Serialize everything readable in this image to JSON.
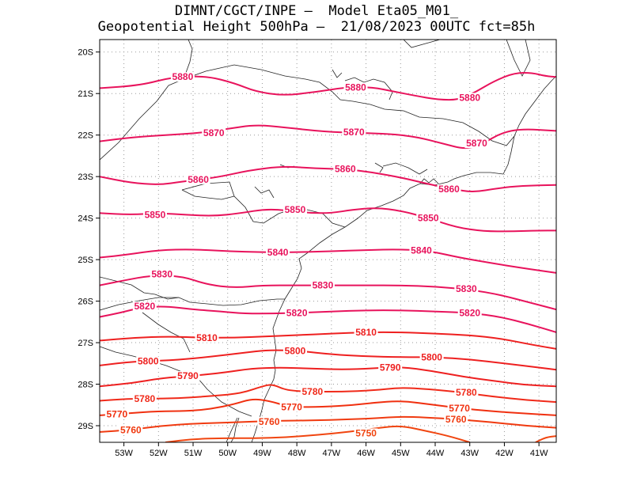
{
  "title_line1": "DIMNT/CGCT/INPE —  Model Eta05_M01_",
  "title_line2": "Geopotential Height 500hPa —  21/08/2023 00UTC fct=85h",
  "axes": {
    "lon_range": [
      -53.7,
      -40.5
    ],
    "lat_range": [
      -29.4,
      -19.7
    ],
    "x_ticks": [
      "53W",
      "52W",
      "51W",
      "50W",
      "49W",
      "48W",
      "47W",
      "46W",
      "45W",
      "44W",
      "43W",
      "42W",
      "41W"
    ],
    "x_tick_values": [
      -53,
      -52,
      -51,
      -50,
      -49,
      -48,
      -47,
      -46,
      -45,
      -44,
      -43,
      -42,
      -41
    ],
    "y_ticks": [
      "20S",
      "21S",
      "22S",
      "23S",
      "24S",
      "25S",
      "26S",
      "27S",
      "28S",
      "29S"
    ],
    "y_tick_values": [
      -20,
      -21,
      -22,
      -23,
      -24,
      -25,
      -26,
      -27,
      -28,
      -29
    ]
  },
  "contours": [
    {
      "level": "5880",
      "color": "#e8135c",
      "pts": [
        [
          -53.7,
          -20.87
        ],
        [
          -52.5,
          -20.8
        ],
        [
          -51.6,
          -20.6
        ],
        [
          -50.6,
          -20.58
        ],
        [
          -49.8,
          -20.75
        ],
        [
          -49.2,
          -20.95
        ],
        [
          -48.4,
          -21.05
        ],
        [
          -47.5,
          -20.97
        ],
        [
          -46.6,
          -20.85
        ],
        [
          -45.8,
          -20.85
        ],
        [
          -45.2,
          -20.95
        ],
        [
          -44.6,
          -21.05
        ],
        [
          -43.9,
          -21.15
        ],
        [
          -43.3,
          -21.15
        ],
        [
          -42.8,
          -20.95
        ],
        [
          -42.3,
          -20.7
        ],
        [
          -41.7,
          -20.5
        ],
        [
          -41.2,
          -20.5
        ],
        [
          -40.8,
          -20.58
        ],
        [
          -40.5,
          -20.6
        ]
      ],
      "labels": [
        [
          -51.3,
          -20.6
        ],
        [
          -46.3,
          -20.85
        ],
        [
          -43.0,
          -21.1
        ]
      ]
    },
    {
      "level": "5870",
      "color": "#e8135c",
      "pts": [
        [
          -53.7,
          -22.15
        ],
        [
          -52.7,
          -22.05
        ],
        [
          -51.8,
          -22.0
        ],
        [
          -50.8,
          -21.95
        ],
        [
          -50.0,
          -21.85
        ],
        [
          -49.2,
          -21.75
        ],
        [
          -48.3,
          -21.82
        ],
        [
          -47.2,
          -21.92
        ],
        [
          -46.2,
          -21.95
        ],
        [
          -45.3,
          -21.97
        ],
        [
          -44.5,
          -22.05
        ],
        [
          -43.8,
          -22.2
        ],
        [
          -43.1,
          -22.35
        ],
        [
          -42.6,
          -22.2
        ],
        [
          -42.1,
          -21.95
        ],
        [
          -41.5,
          -21.85
        ],
        [
          -40.5,
          -21.9
        ]
      ],
      "labels": [
        [
          -50.4,
          -21.95
        ],
        [
          -46.35,
          -21.93
        ],
        [
          -42.8,
          -22.2
        ]
      ]
    },
    {
      "level": "5860",
      "color": "#e8135c",
      "pts": [
        [
          -53.7,
          -23.0
        ],
        [
          -52.8,
          -23.15
        ],
        [
          -52.0,
          -23.2
        ],
        [
          -51.3,
          -23.12
        ],
        [
          -50.3,
          -23.02
        ],
        [
          -49.4,
          -22.85
        ],
        [
          -48.4,
          -22.75
        ],
        [
          -47.5,
          -22.8
        ],
        [
          -46.6,
          -22.82
        ],
        [
          -45.8,
          -22.9
        ],
        [
          -45.0,
          -23.02
        ],
        [
          -44.2,
          -23.18
        ],
        [
          -43.5,
          -23.3
        ],
        [
          -42.9,
          -23.38
        ],
        [
          -42.2,
          -23.28
        ],
        [
          -41.5,
          -23.22
        ],
        [
          -40.5,
          -23.2
        ]
      ],
      "labels": [
        [
          -50.85,
          -23.07
        ],
        [
          -46.6,
          -22.82
        ],
        [
          -43.6,
          -23.3
        ]
      ]
    },
    {
      "level": "5850",
      "color": "#e8135c",
      "pts": [
        [
          -53.7,
          -23.88
        ],
        [
          -52.8,
          -23.92
        ],
        [
          -52.0,
          -23.88
        ],
        [
          -51.2,
          -23.92
        ],
        [
          -50.4,
          -23.95
        ],
        [
          -49.6,
          -23.88
        ],
        [
          -48.9,
          -23.78
        ],
        [
          -48.2,
          -23.82
        ],
        [
          -47.6,
          -23.88
        ],
        [
          -47.0,
          -23.88
        ],
        [
          -46.4,
          -23.8
        ],
        [
          -45.7,
          -23.75
        ],
        [
          -45.0,
          -23.82
        ],
        [
          -44.2,
          -24.0
        ],
        [
          -43.4,
          -24.22
        ],
        [
          -42.6,
          -24.32
        ],
        [
          -41.8,
          -24.32
        ],
        [
          -41.0,
          -24.3
        ],
        [
          -40.5,
          -24.3
        ]
      ],
      "labels": [
        [
          -52.1,
          -23.92
        ],
        [
          -48.05,
          -23.8
        ],
        [
          -44.2,
          -24.0
        ]
      ]
    },
    {
      "level": "5840",
      "color": "#e8135c",
      "pts": [
        [
          -53.7,
          -24.95
        ],
        [
          -52.9,
          -24.88
        ],
        [
          -52.0,
          -24.77
        ],
        [
          -51.0,
          -24.75
        ],
        [
          -50.0,
          -24.8
        ],
        [
          -49.0,
          -24.82
        ],
        [
          -48.0,
          -24.82
        ],
        [
          -47.0,
          -24.8
        ],
        [
          -46.0,
          -24.77
        ],
        [
          -45.0,
          -24.75
        ],
        [
          -44.1,
          -24.8
        ],
        [
          -43.3,
          -24.95
        ],
        [
          -42.4,
          -25.08
        ],
        [
          -41.5,
          -25.2
        ],
        [
          -40.5,
          -25.32
        ]
      ],
      "labels": [
        [
          -48.55,
          -24.83
        ],
        [
          -44.4,
          -24.78
        ]
      ]
    },
    {
      "level": "5830",
      "color": "#e8135c",
      "pts": [
        [
          -53.7,
          -25.62
        ],
        [
          -53.0,
          -25.5
        ],
        [
          -52.2,
          -25.38
        ],
        [
          -51.3,
          -25.4
        ],
        [
          -50.6,
          -25.6
        ],
        [
          -49.8,
          -25.68
        ],
        [
          -49.0,
          -25.62
        ],
        [
          -48.0,
          -25.62
        ],
        [
          -47.0,
          -25.62
        ],
        [
          -46.0,
          -25.62
        ],
        [
          -45.0,
          -25.62
        ],
        [
          -44.0,
          -25.65
        ],
        [
          -43.0,
          -25.72
        ],
        [
          -42.1,
          -25.85
        ],
        [
          -41.2,
          -26.05
        ],
        [
          -40.5,
          -26.2
        ]
      ],
      "labels": [
        [
          -51.9,
          -25.35
        ],
        [
          -47.25,
          -25.62
        ],
        [
          -43.1,
          -25.7
        ]
      ]
    },
    {
      "level": "5820",
      "color": "#e8135c",
      "pts": [
        [
          -53.7,
          -26.38
        ],
        [
          -53.1,
          -26.28
        ],
        [
          -52.5,
          -26.15
        ],
        [
          -51.8,
          -26.12
        ],
        [
          -51.0,
          -26.2
        ],
        [
          -50.2,
          -26.25
        ],
        [
          -49.5,
          -26.3
        ],
        [
          -48.7,
          -26.3
        ],
        [
          -47.9,
          -26.28
        ],
        [
          -47.0,
          -26.25
        ],
        [
          -46.0,
          -26.22
        ],
        [
          -45.0,
          -26.22
        ],
        [
          -44.0,
          -26.25
        ],
        [
          -43.0,
          -26.28
        ],
        [
          -42.1,
          -26.38
        ],
        [
          -41.3,
          -26.55
        ],
        [
          -40.5,
          -26.75
        ]
      ],
      "labels": [
        [
          -52.4,
          -26.12
        ],
        [
          -48.0,
          -26.28
        ],
        [
          -43.0,
          -26.28
        ]
      ]
    },
    {
      "level": "5810",
      "color": "#ee2020",
      "pts": [
        [
          -53.7,
          -26.95
        ],
        [
          -52.7,
          -26.88
        ],
        [
          -51.7,
          -26.85
        ],
        [
          -50.7,
          -26.88
        ],
        [
          -49.8,
          -26.88
        ],
        [
          -48.9,
          -26.85
        ],
        [
          -48.0,
          -26.82
        ],
        [
          -47.0,
          -26.78
        ],
        [
          -46.0,
          -26.75
        ],
        [
          -45.0,
          -26.75
        ],
        [
          -44.0,
          -26.78
        ],
        [
          -43.0,
          -26.82
        ],
        [
          -42.1,
          -26.9
        ],
        [
          -41.2,
          -27.05
        ],
        [
          -40.5,
          -27.15
        ]
      ],
      "labels": [
        [
          -50.6,
          -26.88
        ],
        [
          -46.0,
          -26.75
        ]
      ]
    },
    {
      "level": "5800",
      "color": "#ee2020",
      "pts": [
        [
          -53.7,
          -27.55
        ],
        [
          -52.7,
          -27.45
        ],
        [
          -51.7,
          -27.43
        ],
        [
          -50.6,
          -27.35
        ],
        [
          -49.6,
          -27.25
        ],
        [
          -48.8,
          -27.17
        ],
        [
          -47.9,
          -27.2
        ],
        [
          -47.0,
          -27.28
        ],
        [
          -46.0,
          -27.33
        ],
        [
          -45.0,
          -27.35
        ],
        [
          -44.0,
          -27.35
        ],
        [
          -43.0,
          -27.4
        ],
        [
          -42.0,
          -27.5
        ],
        [
          -41.0,
          -27.6
        ],
        [
          -40.5,
          -27.65
        ]
      ],
      "labels": [
        [
          -52.3,
          -27.45
        ],
        [
          -48.05,
          -27.2
        ],
        [
          -44.1,
          -27.35
        ]
      ]
    },
    {
      "level": "5790",
      "color": "#ee2020",
      "pts": [
        [
          -53.7,
          -28.05
        ],
        [
          -52.8,
          -27.98
        ],
        [
          -51.9,
          -27.85
        ],
        [
          -51.0,
          -27.8
        ],
        [
          -50.1,
          -27.72
        ],
        [
          -49.3,
          -27.62
        ],
        [
          -48.5,
          -27.6
        ],
        [
          -47.6,
          -27.62
        ],
        [
          -46.7,
          -27.65
        ],
        [
          -45.8,
          -27.62
        ],
        [
          -45.0,
          -27.58
        ],
        [
          -44.1,
          -27.68
        ],
        [
          -43.2,
          -27.82
        ],
        [
          -42.3,
          -27.92
        ],
        [
          -41.4,
          -28.02
        ],
        [
          -40.5,
          -28.05
        ]
      ],
      "labels": [
        [
          -51.15,
          -27.8
        ],
        [
          -45.3,
          -27.6
        ]
      ]
    },
    {
      "level": "5780",
      "color": "#f02a1a",
      "pts": [
        [
          -53.7,
          -28.4
        ],
        [
          -52.9,
          -28.35
        ],
        [
          -52.1,
          -28.35
        ],
        [
          -51.2,
          -28.33
        ],
        [
          -50.4,
          -28.28
        ],
        [
          -49.6,
          -28.22
        ],
        [
          -49.0,
          -28.05
        ],
        [
          -48.7,
          -28.0
        ],
        [
          -48.3,
          -28.15
        ],
        [
          -47.6,
          -28.18
        ],
        [
          -46.7,
          -28.18
        ],
        [
          -45.8,
          -28.15
        ],
        [
          -45.0,
          -28.08
        ],
        [
          -44.2,
          -28.12
        ],
        [
          -43.2,
          -28.2
        ],
        [
          -42.3,
          -28.3
        ],
        [
          -41.4,
          -28.38
        ],
        [
          -40.5,
          -28.43
        ]
      ],
      "labels": [
        [
          -52.4,
          -28.35
        ],
        [
          -47.55,
          -28.18
        ],
        [
          -43.1,
          -28.2
        ]
      ]
    },
    {
      "level": "5770",
      "color": "#f03010",
      "pts": [
        [
          -53.7,
          -28.75
        ],
        [
          -52.9,
          -28.7
        ],
        [
          -52.0,
          -28.65
        ],
        [
          -51.2,
          -28.65
        ],
        [
          -50.5,
          -28.6
        ],
        [
          -49.8,
          -28.48
        ],
        [
          -49.3,
          -28.35
        ],
        [
          -48.8,
          -28.4
        ],
        [
          -48.2,
          -28.55
        ],
        [
          -47.5,
          -28.55
        ],
        [
          -46.6,
          -28.52
        ],
        [
          -45.8,
          -28.45
        ],
        [
          -45.0,
          -28.4
        ],
        [
          -44.2,
          -28.48
        ],
        [
          -43.3,
          -28.58
        ],
        [
          -42.4,
          -28.65
        ],
        [
          -41.5,
          -28.7
        ],
        [
          -40.5,
          -28.75
        ]
      ],
      "labels": [
        [
          -53.2,
          -28.72
        ],
        [
          -48.15,
          -28.55
        ],
        [
          -43.3,
          -28.58
        ]
      ]
    },
    {
      "level": "5760",
      "color": "#f03a10",
      "pts": [
        [
          -53.7,
          -29.15
        ],
        [
          -52.8,
          -29.1
        ],
        [
          -51.9,
          -29.0
        ],
        [
          -51.0,
          -28.95
        ],
        [
          -50.2,
          -28.93
        ],
        [
          -49.3,
          -28.9
        ],
        [
          -48.4,
          -28.88
        ],
        [
          -47.5,
          -28.87
        ],
        [
          -46.6,
          -28.85
        ],
        [
          -45.7,
          -28.82
        ],
        [
          -45.0,
          -28.78
        ],
        [
          -44.3,
          -28.8
        ],
        [
          -43.3,
          -28.85
        ],
        [
          -42.3,
          -28.92
        ],
        [
          -41.4,
          -29.0
        ],
        [
          -40.5,
          -29.05
        ]
      ],
      "labels": [
        [
          -52.8,
          -29.1
        ],
        [
          -48.8,
          -28.9
        ],
        [
          -43.4,
          -28.85
        ]
      ]
    },
    {
      "level": "5750",
      "color": "#f04510",
      "pts": [
        [
          -51.8,
          -29.4
        ],
        [
          -51.0,
          -29.32
        ],
        [
          -50.1,
          -29.3
        ],
        [
          -49.2,
          -29.3
        ],
        [
          -48.3,
          -29.28
        ],
        [
          -47.4,
          -29.22
        ],
        [
          -46.5,
          -29.15
        ],
        [
          -45.6,
          -29.05
        ],
        [
          -45.0,
          -29.0
        ],
        [
          -44.4,
          -29.1
        ],
        [
          -43.6,
          -29.25
        ],
        [
          -43.0,
          -29.4
        ]
      ],
      "labels": [
        [
          -46.0,
          -29.18
        ]
      ]
    },
    {
      "level": "",
      "color": "#f04510",
      "pts": [
        [
          -41.1,
          -29.4
        ],
        [
          -40.8,
          -29.28
        ],
        [
          -40.5,
          -29.25
        ]
      ],
      "labels": []
    }
  ]
}
